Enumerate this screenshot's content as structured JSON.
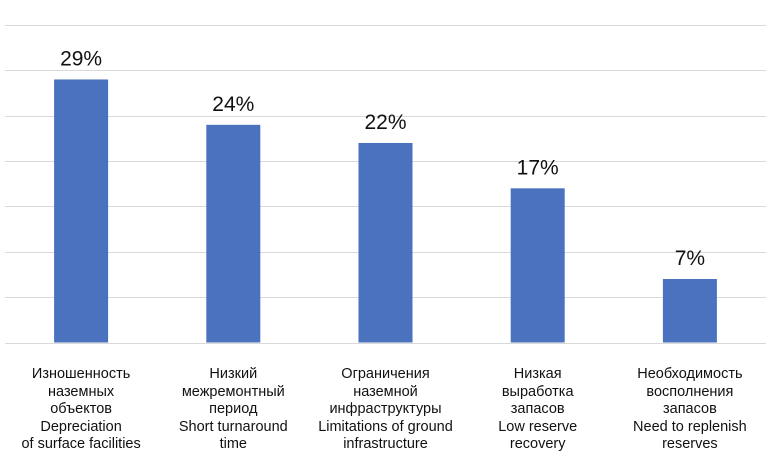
{
  "chart_data": {
    "type": "bar",
    "categories": [
      [
        "Изношенность",
        "наземных",
        "объектов",
        "Depreciation",
        "of surface facilities"
      ],
      [
        "Низкий",
        "межремонтный",
        "период",
        "Short turnaround",
        "time"
      ],
      [
        "Ограничения",
        "наземной",
        "инфраструктуры",
        "Limitations of ground",
        "infrastructure"
      ],
      [
        "Низкая",
        "выработка",
        "запасов",
        "Low reserve",
        "recovery"
      ],
      [
        "Необходимость",
        "восполнения",
        "запасов",
        "Need to replenish",
        "reserves"
      ]
    ],
    "values": [
      29,
      24,
      22,
      17,
      7
    ],
    "value_labels": [
      "29%",
      "24%",
      "22%",
      "17%",
      "7%"
    ],
    "unit": "%",
    "ylim": [
      0,
      35
    ],
    "y_gridlines": [
      0,
      5,
      10,
      15,
      20,
      25,
      30,
      35
    ],
    "y_tick_labels_visible": false,
    "grid": true,
    "colors": {
      "bar": "#4a72be",
      "grid": "#d9d9d9",
      "text": "#111111"
    }
  }
}
